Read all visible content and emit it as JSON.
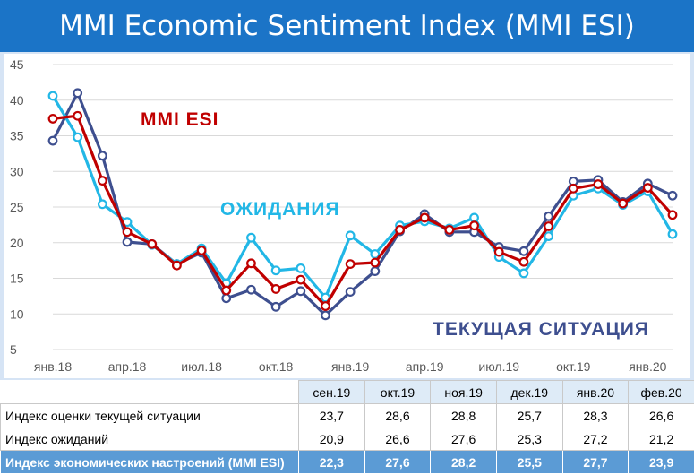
{
  "title": "MMI Economic Sentiment Index (MMI ESI)",
  "colors": {
    "title_bar": "#1b74c7",
    "esi": "#c00000",
    "expectations": "#22b7e6",
    "current": "#3e4f8f",
    "header_fill": "#deebf7",
    "esi_row_fill": "#5b9bd5"
  },
  "chart_data": {
    "type": "line",
    "x": [
      "янв.18",
      "фев.18",
      "мар.18",
      "апр.18",
      "май.18",
      "июн.18",
      "июл.18",
      "авг.18",
      "сен.18",
      "окт.18",
      "ноя.18",
      "дек.18",
      "янв.19",
      "фев.19",
      "мар.19",
      "апр.19",
      "май.19",
      "июн.19",
      "июл.19",
      "авг.19",
      "сен.19",
      "окт.19",
      "ноя.19",
      "дек.19",
      "янв.20",
      "фев.20"
    ],
    "x_tick_labels": [
      "янв.18",
      "апр.18",
      "июл.18",
      "окт.18",
      "янв.19",
      "апр.19",
      "июл.19",
      "окт.19",
      "янв.20"
    ],
    "x_tick_indices": [
      0,
      3,
      6,
      9,
      12,
      15,
      18,
      21,
      24
    ],
    "y_ticks": [
      5,
      10,
      15,
      20,
      25,
      30,
      35,
      40,
      45
    ],
    "ylim": [
      5,
      45
    ],
    "grid": "horizontal",
    "series": [
      {
        "name": "ТЕКУЩАЯ СИТУАЦИЯ",
        "color": "#3e4f8f",
        "values": [
          34.3,
          41.0,
          32.2,
          20.1,
          19.8,
          17.0,
          18.6,
          12.2,
          13.4,
          11.0,
          13.2,
          9.8,
          13.1,
          16.0,
          21.6,
          24.0,
          21.5,
          21.5,
          19.4,
          18.8,
          23.7,
          28.6,
          28.8,
          25.7,
          28.3,
          26.6
        ]
      },
      {
        "name": "ОЖИДАНИЯ",
        "color": "#22b7e6",
        "values": [
          40.6,
          34.8,
          25.4,
          22.9,
          19.7,
          17.0,
          19.2,
          14.3,
          20.7,
          16.1,
          16.4,
          12.3,
          21.0,
          18.4,
          22.4,
          23.0,
          22.0,
          23.5,
          18.0,
          15.7,
          20.9,
          26.6,
          27.6,
          25.3,
          27.2,
          21.2
        ]
      },
      {
        "name": "MMI ESI",
        "color": "#c00000",
        "values": [
          37.4,
          37.8,
          28.7,
          21.5,
          19.8,
          16.8,
          18.9,
          13.3,
          17.1,
          13.5,
          14.8,
          11.1,
          17.0,
          17.2,
          21.8,
          23.5,
          21.8,
          22.4,
          18.7,
          17.3,
          22.3,
          27.6,
          28.2,
          25.5,
          27.7,
          23.9
        ]
      }
    ],
    "annotations": [
      {
        "text": "MMI ESI",
        "color": "#c00000"
      },
      {
        "text": "ОЖИДАНИЯ",
        "color": "#22b7e6"
      },
      {
        "text": "ТЕКУЩАЯ СИТУАЦИЯ",
        "color": "#3e4f8f"
      }
    ]
  },
  "table": {
    "columns": [
      "сен.19",
      "окт.19",
      "ноя.19",
      "дек.19",
      "янв.20",
      "фев.20"
    ],
    "rows": [
      {
        "label": "Индекс оценки текущей ситуации",
        "values": [
          "23,7",
          "28,6",
          "28,8",
          "25,7",
          "28,3",
          "26,6"
        ]
      },
      {
        "label": "Индекс ожиданий",
        "values": [
          "20,9",
          "26,6",
          "27,6",
          "25,3",
          "27,2",
          "21,2"
        ]
      },
      {
        "label": "Индекс экономических настроений (MMI ESI)",
        "values": [
          "22,3",
          "27,6",
          "28,2",
          "25,5",
          "27,7",
          "23,9"
        ]
      }
    ]
  }
}
